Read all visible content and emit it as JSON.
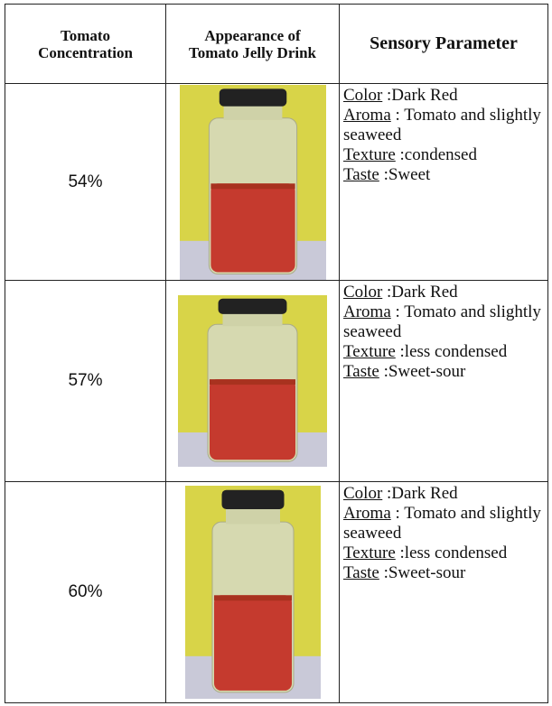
{
  "table": {
    "header": [
      "Tomato Concentration",
      "Appearance of Tomato Jelly Drink",
      "Sensory Parameter"
    ],
    "rows": [
      {
        "concentration": "54%",
        "sensory": [
          {
            "label": "Color",
            "value": ":Dark Red"
          },
          {
            "label": "Aroma",
            "value": ": Tomato and slightly seaweed"
          },
          {
            "label": "Texture",
            "value": ":condensed"
          },
          {
            "label": "Taste",
            "value": ":Sweet"
          }
        ]
      },
      {
        "concentration": "57%",
        "sensory": [
          {
            "label": "Color",
            "value": ":Dark Red"
          },
          {
            "label": "Aroma",
            "value": ": Tomato and slightly seaweed"
          },
          {
            "label": "Texture",
            "value": ":less condensed"
          },
          {
            "label": "Taste",
            "value": ":Sweet-sour"
          }
        ]
      },
      {
        "concentration": "60%",
        "sensory": [
          {
            "label": "Color",
            "value": ":Dark Red"
          },
          {
            "label": "Aroma",
            "value": ": Tomato and slightly seaweed"
          },
          {
            "label": "Texture",
            "value": ":less condensed"
          },
          {
            "label": "Taste",
            "value": ":Sweet-sour"
          }
        ]
      }
    ]
  }
}
